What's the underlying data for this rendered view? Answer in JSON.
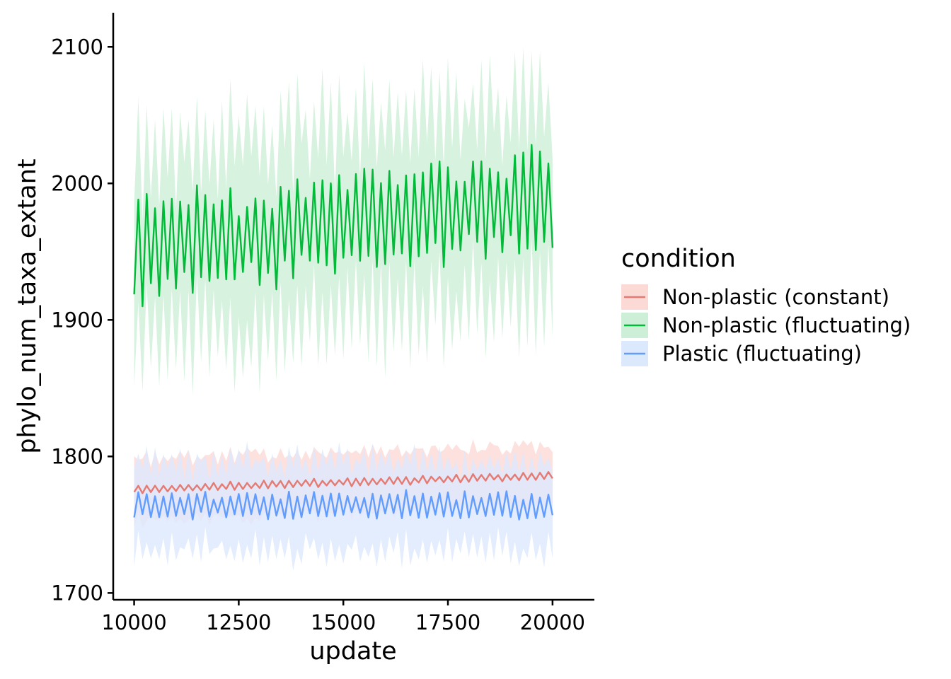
{
  "chart_data": {
    "type": "line",
    "xlabel": "update",
    "ylabel": "phylo_num_taxa_extant",
    "xlim": [
      9500,
      21000
    ],
    "ylim": [
      1695,
      2125
    ],
    "x_ticks": [
      10000,
      12500,
      15000,
      17500,
      20000
    ],
    "x_tick_labels": [
      "10000",
      "12500",
      "15000",
      "17500",
      "20000"
    ],
    "y_ticks": [
      1700,
      1800,
      1900,
      2000,
      2100
    ],
    "y_tick_labels": [
      "1700",
      "1800",
      "1900",
      "2000",
      "2100"
    ],
    "grid": false,
    "legend": {
      "title": "condition",
      "position": "right"
    },
    "x_range": [
      10000,
      20000
    ],
    "x_step": 100,
    "series": [
      {
        "name": "Non-plastic (constant)",
        "color": "#E57A72",
        "ribbon_color": "#FBDAD6",
        "mean_start": 1776,
        "mean_end": 1786,
        "oscillation_amplitude": 3,
        "ci_halfwidth": 22
      },
      {
        "name": "Non-plastic (fluctuating)",
        "color": "#00BA38",
        "ribbon_color": "#CDEFD7",
        "mean_start": 1950,
        "mean_end": 1990,
        "oscillation_amplitude": 40,
        "ci_halfwidth": 70
      },
      {
        "name": "Plastic (fluctuating)",
        "color": "#619CFF",
        "ribbon_color": "#DCE8FC",
        "mean_start": 1764,
        "mean_end": 1764,
        "oscillation_amplitude": 10,
        "ci_halfwidth": 32
      }
    ]
  }
}
